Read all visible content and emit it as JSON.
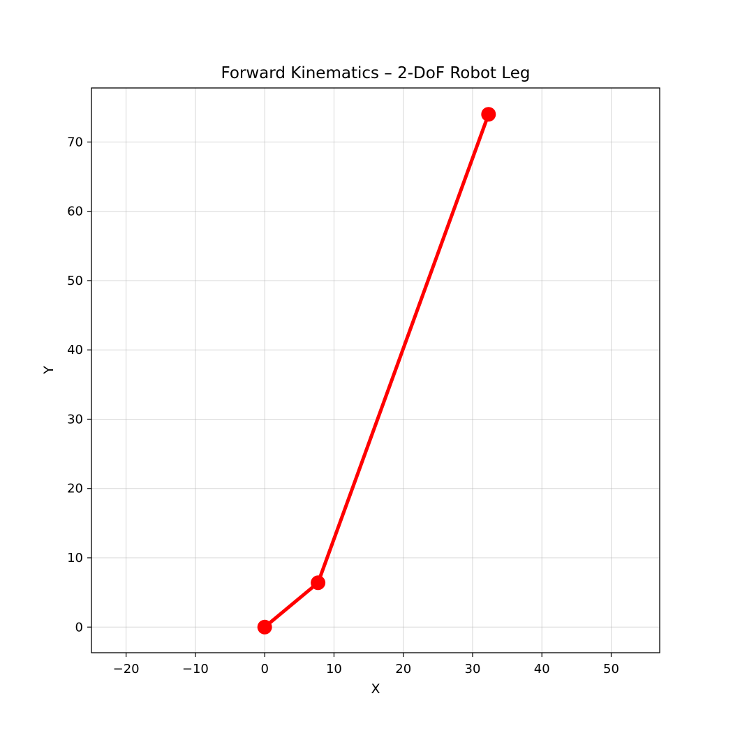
{
  "chart_data": {
    "type": "line",
    "title": "Forward Kinematics – 2-DoF Robot Leg",
    "xlabel": "X",
    "ylabel": "Y",
    "xlim": [
      -25,
      57
    ],
    "ylim": [
      -3.7,
      77.8
    ],
    "xticks": [
      -20,
      -10,
      0,
      10,
      20,
      30,
      40,
      50
    ],
    "yticks": [
      0,
      10,
      20,
      30,
      40,
      50,
      60,
      70
    ],
    "xtick_labels": [
      "−20",
      "−10",
      "0",
      "10",
      "20",
      "30",
      "40",
      "50"
    ],
    "ytick_labels": [
      "0",
      "10",
      "20",
      "30",
      "40",
      "50",
      "60",
      "70"
    ],
    "grid": true,
    "series": [
      {
        "x": [
          0,
          7.7,
          32.3
        ],
        "y": [
          0,
          6.4,
          74.0
        ],
        "color": "#ff0000",
        "marker": "circle"
      }
    ]
  }
}
